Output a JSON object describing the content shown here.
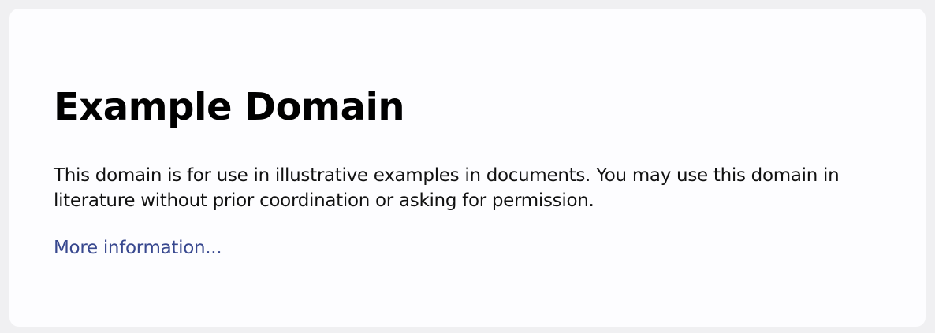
{
  "page": {
    "title": "Example Domain",
    "description": "This domain is for use in illustrative examples in documents. You may use this domain in literature without prior coordination or asking for permission.",
    "link_text": "More information..."
  },
  "colors": {
    "background": "#f0f0f2",
    "card": "#fdfdff",
    "link": "#38488f"
  }
}
